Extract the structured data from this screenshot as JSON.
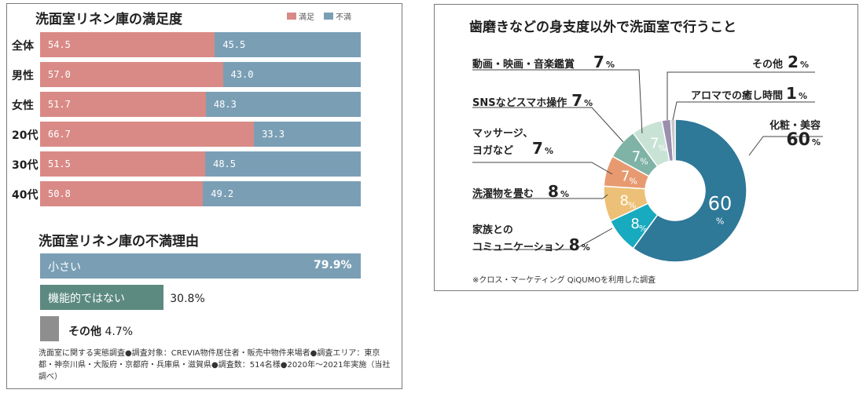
{
  "chart_data": [
    {
      "type": "bar",
      "orientation": "horizontal-stacked-100",
      "title": "洗面室リネン庫の満足度",
      "legend": [
        {
          "name": "満足",
          "color": "#d98a86"
        },
        {
          "name": "不満",
          "color": "#7a9fb5"
        }
      ],
      "categories": [
        "全体",
        "男性",
        "女性",
        "20代",
        "30代",
        "40代"
      ],
      "series": [
        {
          "name": "満足",
          "values": [
            54.5,
            57.0,
            51.7,
            66.7,
            51.5,
            50.8
          ],
          "labels": [
            "54.5",
            "57.0",
            "51.7",
            "66.7",
            "51.5",
            "50.8"
          ]
        },
        {
          "name": "不満",
          "values": [
            45.5,
            43.0,
            48.3,
            33.3,
            48.5,
            49.2
          ],
          "labels": [
            "45.5",
            "43.0",
            "48.3",
            "33.3",
            "48.5",
            "49.2"
          ]
        }
      ]
    },
    {
      "type": "bar",
      "orientation": "horizontal",
      "title": "洗面室リネン庫の不満理由",
      "categories": [
        "小さい",
        "機能的ではない",
        "その他"
      ],
      "values": [
        79.9,
        30.8,
        4.7
      ],
      "labels": [
        "79.9%",
        "30.8%",
        "4.7%"
      ],
      "colors": [
        "#7a9fb5",
        "#5c8a80",
        "#8e8e8e"
      ]
    },
    {
      "type": "pie",
      "style": "donut",
      "title": "歯磨きなどの身支度以外で洗面室で行うこと",
      "categories": [
        "化粧・美容",
        "家族とのコミュニケーション",
        "洗濯物を畳む",
        "マッサージ、ヨガなど",
        "SNSなどスマホ操作",
        "動画・映画・音楽鑑賞",
        "その他",
        "アロマでの癒し時間"
      ],
      "values": [
        60,
        8,
        8,
        7,
        7,
        7,
        2,
        1
      ],
      "colors": [
        "#2e7898",
        "#18aabf",
        "#ecc076",
        "#e79a70",
        "#7fb3a5",
        "#c9e2d6",
        "#9b8fb0",
        "#c8c8c8"
      ]
    }
  ],
  "satisfaction": {
    "title": "洗面室リネン庫の満足度",
    "legend": {
      "satisfied": "満足",
      "dissatisfied": "不満"
    }
  },
  "dissatisfaction": {
    "title": "洗面室リネン庫の不満理由"
  },
  "left_note": "洗面室に関する実態調査●調査対象：CREVIA物件居住者・販売中物件来場者●調査エリア：東京都・神奈川県・大阪府・京都府・兵庫県・滋賀県●調査数：514名様●2020年～2021年実施（当社調べ）",
  "donut": {
    "title": "歯磨きなどの身支度以外で洗面室で行うこと",
    "source": "※クロス・マーケティング QiQUMOを利用した調査",
    "pct_unit": "%",
    "callouts": [
      {
        "label": "化粧・美容",
        "value": "60"
      },
      {
        "label": "家族との",
        "label2": "コミュニケーション",
        "value": "8"
      },
      {
        "label": "洗濯物を畳む",
        "value": "8"
      },
      {
        "label": "マッサージ、",
        "label2": "ヨガなど",
        "value": "7"
      },
      {
        "label": "SNSなどスマホ操作",
        "value": "7"
      },
      {
        "label": "動画・映画・音楽鑑賞",
        "value": "7"
      },
      {
        "label": "その他",
        "value": "2"
      },
      {
        "label": "アロマでの癒し時間",
        "value": "1"
      }
    ],
    "inner_labels": [
      "60",
      "8",
      "8",
      "7",
      "7",
      "7"
    ]
  }
}
